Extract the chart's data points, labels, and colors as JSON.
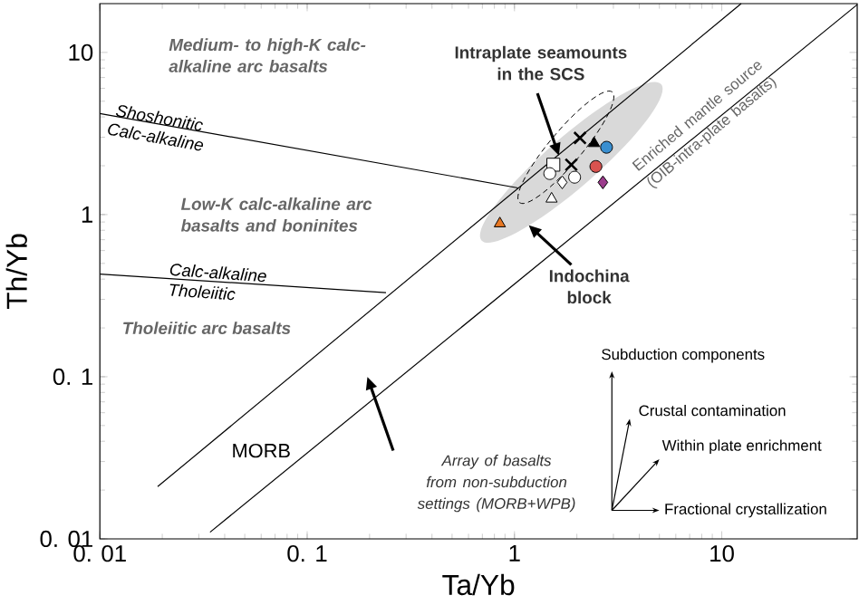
{
  "chart_data": {
    "type": "scatter",
    "xlabel": "Ta/Yb",
    "ylabel": "Th/Yb",
    "log": "xy",
    "xlim": [
      0.01,
      45
    ],
    "ylim": [
      0.01,
      20
    ],
    "xticks": [
      {
        "value": 0.01,
        "label": "0. 01"
      },
      {
        "value": 0.1,
        "label": "0. 1"
      },
      1,
      10
    ],
    "yticks": [
      {
        "value": 0.01,
        "label": "0. 01"
      },
      {
        "value": 0.1,
        "label": "0. 1"
      },
      1,
      10
    ],
    "series": [
      {
        "color": "#e87722",
        "marker": "triangle",
        "x": [
          0.85
        ],
        "values": [
          0.88
        ]
      },
      {
        "color": "#ffffff",
        "marker": "triangle",
        "x": [
          1.51
        ],
        "values": [
          1.25
        ]
      },
      {
        "color": "#ffffff",
        "marker": "diamond",
        "x": [
          1.7
        ],
        "values": [
          1.58
        ]
      },
      {
        "color": "#ffffff",
        "marker": "circle",
        "x": [
          1.95
        ],
        "values": [
          1.7
        ]
      },
      {
        "color": "#ffffff",
        "marker": "square",
        "x": [
          1.54
        ],
        "values": [
          2.03
        ]
      },
      {
        "color": "#ffffff",
        "marker": "circle",
        "x": [
          1.48
        ],
        "values": [
          1.79
        ]
      },
      {
        "color": "#000000",
        "marker": "cross",
        "x": [
          1.88
        ],
        "values": [
          2.03
        ]
      },
      {
        "color": "#000000",
        "marker": "cross",
        "x": [
          2.07
        ],
        "values": [
          2.97
        ]
      },
      {
        "color": "#000000",
        "marker": "triangle",
        "x": [
          2.42
        ],
        "values": [
          2.75
        ]
      },
      {
        "color": "#3a8fd0",
        "marker": "circle",
        "x": [
          2.78
        ],
        "values": [
          2.6
        ]
      },
      {
        "color": "#d9534f",
        "marker": "circle",
        "x": [
          2.47
        ],
        "values": [
          1.98
        ]
      },
      {
        "color": "#9b3c8c",
        "marker": "diamond",
        "x": [
          2.67
        ],
        "values": [
          1.58
        ]
      },
      {
        "type": "line",
        "color": "#000000",
        "marker": "none",
        "x": [
          0.019,
          12.4
        ],
        "values": [
          0.021,
          20
        ]
      },
      {
        "type": "line",
        "color": "#000000",
        "marker": "none",
        "x": [
          0.034,
          45
        ],
        "values": [
          0.011,
          19.7
        ]
      },
      {
        "type": "line",
        "color": "#000000",
        "marker": "none",
        "x": [
          0.01,
          1.04
        ],
        "values": [
          4.2,
          1.46
        ]
      },
      {
        "type": "line",
        "color": "#000000",
        "marker": "none",
        "x": [
          0.01,
          0.24
        ],
        "values": [
          0.43,
          0.33
        ]
      }
    ],
    "annotations": [
      "Medium- to high-K calc-alkaline arc basalts",
      "Shoshonitic",
      "Calc-alkaline",
      "Low-K calc-alkaline arc basalts and boninites",
      "Calc-alkaline",
      "Tholeiitic",
      "Tholeiitic arc basalts",
      "MORB",
      "Array of basalts from non-subduction settings (MORB+WPB)",
      "Enriched mantle source (OIB-intra-plate basalts)",
      "Intraplate seamounts in the SCS",
      "Indochina block",
      "Subduction components",
      "Crustal contamination",
      "Within plate enrichment",
      "Fractional crystallization"
    ]
  }
}
